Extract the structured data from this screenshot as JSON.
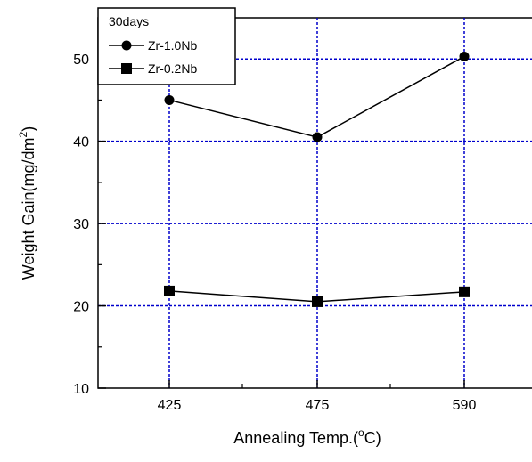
{
  "chart_data": {
    "type": "line",
    "xlabel_main": "Annealing Temp.(",
    "xlabel_sup": "o",
    "xlabel_end": "C)",
    "ylabel_main": "Weight Gain(mg/dm",
    "ylabel_sup": "2",
    "ylabel_end": ")",
    "categories": [
      "425",
      "475",
      "590"
    ],
    "yticks": [
      "10",
      "20",
      "30",
      "40",
      "50"
    ],
    "ylim": [
      10,
      55
    ],
    "grid": true,
    "grid_color": "#0000cc",
    "legend": {
      "title": "30days",
      "placement": "top-left"
    },
    "series": [
      {
        "name": "Zr-1.0Nb",
        "marker": "circle",
        "values": [
          45.0,
          40.5,
          50.3
        ]
      },
      {
        "name": "Zr-0.2Nb",
        "marker": "square",
        "values": [
          21.8,
          20.5,
          21.7
        ]
      }
    ]
  }
}
